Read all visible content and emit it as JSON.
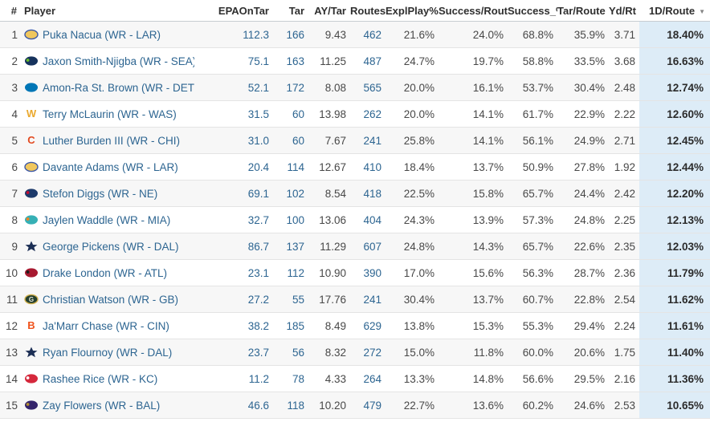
{
  "icons": {
    "sort_desc": "▼"
  },
  "colors": {
    "link_blue": "#2d6591",
    "value_gray": "#484848",
    "highlight_bg": "#ddecf7",
    "stripe_bg": "#f7f7f7",
    "header_text": "#2f2f2f"
  },
  "table": {
    "columns": [
      {
        "key": "rank",
        "label": "#"
      },
      {
        "key": "player",
        "label": "Player"
      },
      {
        "key": "epa_on_tar",
        "label": "EPAOnTar",
        "style": "blue"
      },
      {
        "key": "tar",
        "label": "Tar",
        "style": "blue"
      },
      {
        "key": "ay_tar",
        "label": "AY/Tar",
        "style": "gray"
      },
      {
        "key": "routes",
        "label": "Routes",
        "style": "blue"
      },
      {
        "key": "expl_play_pct",
        "label": "ExplPlay%",
        "style": "gray"
      },
      {
        "key": "success_route",
        "label": "Success/Route",
        "style": "gray"
      },
      {
        "key": "success_pct",
        "label": "Success_%",
        "style": "gray"
      },
      {
        "key": "tar_route",
        "label": "Tar/Route",
        "style": "gray"
      },
      {
        "key": "yd_rt",
        "label": "Yd/Rt",
        "style": "gray"
      },
      {
        "key": "one_d_route",
        "label": "1D/Route",
        "style": "highlight",
        "sorted": "desc"
      }
    ],
    "logos": {
      "LAR": {
        "shape": "ellipse",
        "fill": "#f0c75e",
        "stroke": "#3a57a7"
      },
      "SEA": {
        "shape": "ellipse",
        "fill": "#16325c",
        "accent": "#69be28"
      },
      "DET": {
        "shape": "ellipse",
        "fill": "#0076b6"
      },
      "WAS": {
        "shape": "letter",
        "text": "W",
        "textColor": "#eaa92f"
      },
      "CHI": {
        "shape": "letter",
        "text": "C",
        "textColor": "#e2491f"
      },
      "NE": {
        "shape": "ellipse",
        "fill": "#1d3a6b",
        "accent": "#c60c30"
      },
      "MIA": {
        "shape": "ellipse",
        "fill": "#36b0b5",
        "accent": "#f58220"
      },
      "DAL": {
        "shape": "star",
        "fill": "#1c2f55"
      },
      "ATL": {
        "shape": "ellipse",
        "fill": "#a71930",
        "accent": "#1a1a1a"
      },
      "GB": {
        "shape": "ellipse",
        "fill": "#24402f",
        "stroke": "#d2b04c",
        "text": "G",
        "textColor": "#e8e6da"
      },
      "CIN": {
        "shape": "letter",
        "text": "B",
        "textColor": "#f0531c"
      },
      "KC": {
        "shape": "ellipse",
        "fill": "#d5283c",
        "accent": "#ffffff"
      },
      "BAL": {
        "shape": "ellipse",
        "fill": "#34246b",
        "accent": "#b49032"
      }
    },
    "players": [
      {
        "rank": "1",
        "team": "LAR",
        "name": "Puka Nacua (WR - LAR)",
        "epa_on_tar": "112.3",
        "tar": "166",
        "ay_tar": "9.43",
        "routes": "462",
        "expl_play_pct": "21.6%",
        "success_route": "24.0%",
        "success_pct": "68.8%",
        "tar_route": "35.9%",
        "yd_rt": "3.71",
        "one_d_route": "18.40%"
      },
      {
        "rank": "2",
        "team": "SEA",
        "name": "Jaxon Smith-Njigba (WR - SEA)",
        "epa_on_tar": "75.1",
        "tar": "163",
        "ay_tar": "11.25",
        "routes": "487",
        "expl_play_pct": "24.7%",
        "success_route": "19.7%",
        "success_pct": "58.8%",
        "tar_route": "33.5%",
        "yd_rt": "3.68",
        "one_d_route": "16.63%"
      },
      {
        "rank": "3",
        "team": "DET",
        "name": "Amon-Ra St. Brown (WR - DET)",
        "epa_on_tar": "52.1",
        "tar": "172",
        "ay_tar": "8.08",
        "routes": "565",
        "expl_play_pct": "20.0%",
        "success_route": "16.1%",
        "success_pct": "53.7%",
        "tar_route": "30.4%",
        "yd_rt": "2.48",
        "one_d_route": "12.74%"
      },
      {
        "rank": "4",
        "team": "WAS",
        "name": "Terry McLaurin (WR - WAS)",
        "epa_on_tar": "31.5",
        "tar": "60",
        "ay_tar": "13.98",
        "routes": "262",
        "expl_play_pct": "20.0%",
        "success_route": "14.1%",
        "success_pct": "61.7%",
        "tar_route": "22.9%",
        "yd_rt": "2.22",
        "one_d_route": "12.60%"
      },
      {
        "rank": "5",
        "team": "CHI",
        "name": "Luther Burden III (WR - CHI)",
        "epa_on_tar": "31.0",
        "tar": "60",
        "ay_tar": "7.67",
        "routes": "241",
        "expl_play_pct": "25.8%",
        "success_route": "14.1%",
        "success_pct": "56.1%",
        "tar_route": "24.9%",
        "yd_rt": "2.71",
        "one_d_route": "12.45%"
      },
      {
        "rank": "6",
        "team": "LAR",
        "name": "Davante Adams (WR - LAR)",
        "epa_on_tar": "20.4",
        "tar": "114",
        "ay_tar": "12.67",
        "routes": "410",
        "expl_play_pct": "18.4%",
        "success_route": "13.7%",
        "success_pct": "50.9%",
        "tar_route": "27.8%",
        "yd_rt": "1.92",
        "one_d_route": "12.44%"
      },
      {
        "rank": "7",
        "team": "NE",
        "name": "Stefon Diggs (WR - NE)",
        "epa_on_tar": "69.1",
        "tar": "102",
        "ay_tar": "8.54",
        "routes": "418",
        "expl_play_pct": "22.5%",
        "success_route": "15.8%",
        "success_pct": "65.7%",
        "tar_route": "24.4%",
        "yd_rt": "2.42",
        "one_d_route": "12.20%"
      },
      {
        "rank": "8",
        "team": "MIA",
        "name": "Jaylen Waddle (WR - MIA)",
        "epa_on_tar": "32.7",
        "tar": "100",
        "ay_tar": "13.06",
        "routes": "404",
        "expl_play_pct": "24.3%",
        "success_route": "13.9%",
        "success_pct": "57.3%",
        "tar_route": "24.8%",
        "yd_rt": "2.25",
        "one_d_route": "12.13%"
      },
      {
        "rank": "9",
        "team": "DAL",
        "name": "George Pickens (WR - DAL)",
        "epa_on_tar": "86.7",
        "tar": "137",
        "ay_tar": "11.29",
        "routes": "607",
        "expl_play_pct": "24.8%",
        "success_route": "14.3%",
        "success_pct": "65.7%",
        "tar_route": "22.6%",
        "yd_rt": "2.35",
        "one_d_route": "12.03%"
      },
      {
        "rank": "10",
        "team": "ATL",
        "name": "Drake London (WR - ATL)",
        "epa_on_tar": "23.1",
        "tar": "112",
        "ay_tar": "10.90",
        "routes": "390",
        "expl_play_pct": "17.0%",
        "success_route": "15.6%",
        "success_pct": "56.3%",
        "tar_route": "28.7%",
        "yd_rt": "2.36",
        "one_d_route": "11.79%"
      },
      {
        "rank": "11",
        "team": "GB",
        "name": "Christian Watson (WR - GB)",
        "epa_on_tar": "27.2",
        "tar": "55",
        "ay_tar": "17.76",
        "routes": "241",
        "expl_play_pct": "30.4%",
        "success_route": "13.7%",
        "success_pct": "60.7%",
        "tar_route": "22.8%",
        "yd_rt": "2.54",
        "one_d_route": "11.62%"
      },
      {
        "rank": "12",
        "team": "CIN",
        "name": "Ja'Marr Chase (WR - CIN)",
        "epa_on_tar": "38.2",
        "tar": "185",
        "ay_tar": "8.49",
        "routes": "629",
        "expl_play_pct": "13.8%",
        "success_route": "15.3%",
        "success_pct": "55.3%",
        "tar_route": "29.4%",
        "yd_rt": "2.24",
        "one_d_route": "11.61%"
      },
      {
        "rank": "13",
        "team": "DAL",
        "name": "Ryan Flournoy (WR - DAL)",
        "epa_on_tar": "23.7",
        "tar": "56",
        "ay_tar": "8.32",
        "routes": "272",
        "expl_play_pct": "15.0%",
        "success_route": "11.8%",
        "success_pct": "60.0%",
        "tar_route": "20.6%",
        "yd_rt": "1.75",
        "one_d_route": "11.40%"
      },
      {
        "rank": "14",
        "team": "KC",
        "name": "Rashee Rice (WR - KC)",
        "epa_on_tar": "11.2",
        "tar": "78",
        "ay_tar": "4.33",
        "routes": "264",
        "expl_play_pct": "13.3%",
        "success_route": "14.8%",
        "success_pct": "56.6%",
        "tar_route": "29.5%",
        "yd_rt": "2.16",
        "one_d_route": "11.36%"
      },
      {
        "rank": "15",
        "team": "BAL",
        "name": "Zay Flowers (WR - BAL)",
        "epa_on_tar": "46.6",
        "tar": "118",
        "ay_tar": "10.20",
        "routes": "479",
        "expl_play_pct": "22.7%",
        "success_route": "13.6%",
        "success_pct": "60.2%",
        "tar_route": "24.6%",
        "yd_rt": "2.53",
        "one_d_route": "10.65%"
      }
    ]
  }
}
